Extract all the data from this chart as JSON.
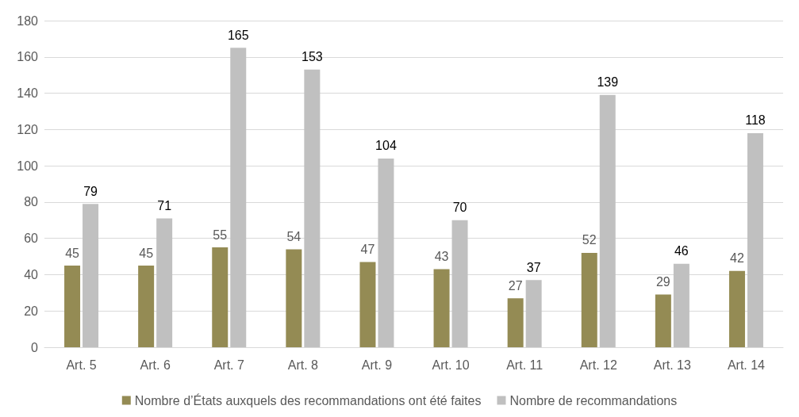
{
  "chart_data": {
    "type": "bar",
    "categories": [
      "Art. 5",
      "Art. 6",
      "Art. 7",
      "Art. 8",
      "Art. 9",
      "Art. 10",
      "Art. 11",
      "Art. 12",
      "Art. 13",
      "Art. 14"
    ],
    "series": [
      {
        "name": "Nombre d’États auxquels des recommandations ont été faites",
        "color": "#948b54",
        "values": [
          45,
          45,
          55,
          54,
          47,
          43,
          27,
          52,
          29,
          42
        ]
      },
      {
        "name": "Nombre de recommandations",
        "color": "#c0c0c0",
        "values": [
          79,
          71,
          165,
          153,
          104,
          70,
          37,
          139,
          46,
          118
        ]
      }
    ],
    "ylim": [
      0,
      180
    ],
    "yticks": [
      0,
      20,
      40,
      60,
      80,
      100,
      120,
      140,
      160,
      180
    ],
    "grid": "y",
    "legend": "bottom",
    "data_labels": true
  }
}
